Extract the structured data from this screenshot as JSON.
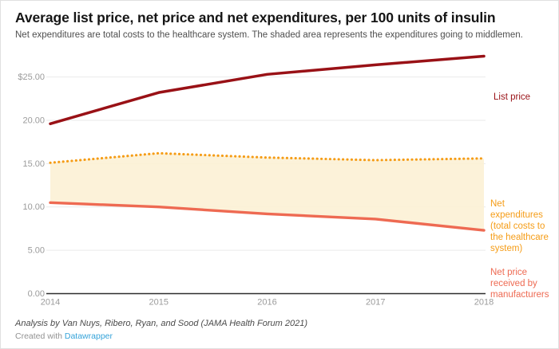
{
  "header": {
    "title": "Average list price, net price and net expenditures, per 100 units of insulin",
    "subtitle": "Net expenditures are total costs to the healthcare system. The shaded area represents the expenditures going to middlemen."
  },
  "chart_data": {
    "type": "line",
    "x": [
      2014,
      2015,
      2016,
      2017,
      2018
    ],
    "x_labels": [
      "2014",
      "2015",
      "2016",
      "2017",
      "2018"
    ],
    "series": [
      {
        "name": "List price",
        "values": [
          19.6,
          23.2,
          25.3,
          26.4,
          27.4
        ],
        "color": "#991116",
        "style": "solid"
      },
      {
        "name": "Net expenditures (total costs to the healthcare system)",
        "values": [
          15.1,
          16.2,
          15.7,
          15.4,
          15.6
        ],
        "color": "#f59c16",
        "style": "dotted"
      },
      {
        "name": "Net price received by manufacturers",
        "values": [
          10.5,
          10.0,
          9.2,
          8.6,
          7.3
        ],
        "color": "#ee6a52",
        "style": "solid"
      }
    ],
    "area_between": {
      "upper": 1,
      "lower": 2,
      "fill": "#fcf0d2",
      "opacity": 0.85
    },
    "y_ticks": [
      {
        "value": 25,
        "label": "$25.00"
      },
      {
        "value": 20,
        "label": "20.00"
      },
      {
        "value": 15,
        "label": "15.00"
      },
      {
        "value": 10,
        "label": "10.00"
      },
      {
        "value": 5,
        "label": "5.00"
      },
      {
        "value": 0,
        "label": "0.00"
      }
    ],
    "ylim": [
      0,
      28
    ],
    "grid": true,
    "legend_position": "right-of-lines",
    "axis_color": "#2e2e2e",
    "grid_color": "#e9e9e9",
    "tick_label_color": "#9b9b9b"
  },
  "footer": {
    "byline": "Analysis by Van Nuys, Ribero, Ryan, and Sood (JAMA Health Forum 2021)",
    "attribution_prefix": "Created with ",
    "attribution_link": "Datawrapper",
    "link_color": "#35a3d9"
  }
}
